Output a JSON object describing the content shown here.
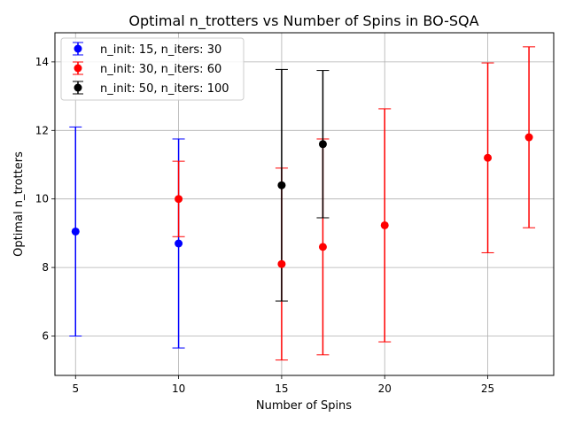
{
  "chart_data": {
    "type": "scatter",
    "title": "Optimal n_trotters vs Number of Spins in BO-SQA",
    "xlabel": "Number of Spins",
    "ylabel": "Optimal n_trotters",
    "xlim": [
      4,
      28.2
    ],
    "ylim": [
      4.85,
      14.85
    ],
    "xticks": [
      5,
      10,
      15,
      20,
      25
    ],
    "yticks": [
      6,
      8,
      10,
      12,
      14
    ],
    "grid": true,
    "legend_position": "top-left",
    "series": [
      {
        "name": "n_init: 15, n_iters: 30",
        "color": "#0000ff",
        "points": [
          {
            "x": 5,
            "y": 9.05,
            "err": 3.05
          },
          {
            "x": 10,
            "y": 8.7,
            "err": 3.05
          }
        ]
      },
      {
        "name": "n_init: 30, n_iters: 60",
        "color": "#ff0000",
        "points": [
          {
            "x": 10,
            "y": 10.0,
            "err": 1.1
          },
          {
            "x": 15,
            "y": 8.1,
            "err": 2.8
          },
          {
            "x": 17,
            "y": 8.6,
            "err": 3.15
          },
          {
            "x": 20,
            "y": 9.23,
            "err": 3.4
          },
          {
            "x": 25,
            "y": 11.2,
            "err": 2.77
          },
          {
            "x": 27,
            "y": 11.8,
            "err": 2.64
          }
        ]
      },
      {
        "name": "n_init: 50, n_iters: 100",
        "color": "#000000",
        "points": [
          {
            "x": 15,
            "y": 10.4,
            "err": 3.38
          },
          {
            "x": 17,
            "y": 11.6,
            "err": 2.15
          }
        ]
      }
    ]
  }
}
